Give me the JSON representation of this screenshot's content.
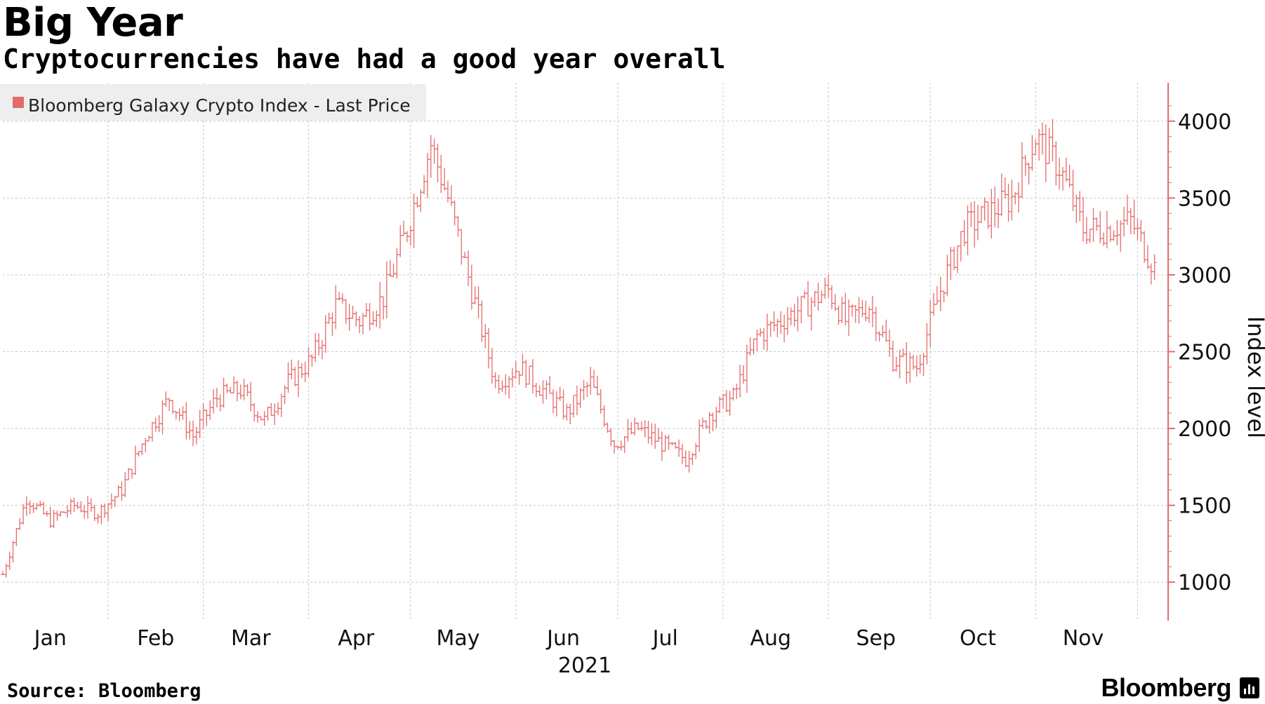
{
  "title": "Big Year",
  "subtitle": "Cryptocurrencies have had a good year overall",
  "source": "Source: Bloomberg",
  "brand": "Bloomberg",
  "brand_icon": "bar-chart-icon",
  "colors": {
    "series": "#e46b6b",
    "grid": "#c8c8c8",
    "legend_bg": "#eeeeee"
  },
  "chart_data": {
    "type": "ohlc",
    "title": "Big Year",
    "subtitle": "Cryptocurrencies have had a good year overall",
    "ylabel": "Index level",
    "ylim": [
      750,
      4250
    ],
    "yticks": [
      1000,
      1500,
      2000,
      2500,
      3000,
      3500,
      4000
    ],
    "ytick_labels": [
      "1000",
      "1500",
      "2000",
      "2500",
      "3000",
      "3500",
      "4000"
    ],
    "y_axis_side": "right",
    "months": [
      "Jan",
      "Feb",
      "Mar",
      "Apr",
      "May",
      "Jun",
      "Jul",
      "Aug",
      "Sep",
      "Oct",
      "Nov"
    ],
    "year_label": "2021",
    "legend": "Bloomberg Galaxy Crypto Index - Last Price",
    "legend_position": "top-left",
    "grid": true,
    "series": [
      {
        "name": "Bloomberg Galaxy Crypto Index - Last Price",
        "x": [
          "2021-01-01",
          "2021-01-08",
          "2021-01-15",
          "2021-01-22",
          "2021-01-29",
          "2021-02-05",
          "2021-02-12",
          "2021-02-19",
          "2021-02-26",
          "2021-03-05",
          "2021-03-12",
          "2021-03-19",
          "2021-03-26",
          "2021-04-02",
          "2021-04-09",
          "2021-04-16",
          "2021-04-23",
          "2021-04-30",
          "2021-05-07",
          "2021-05-12",
          "2021-05-19",
          "2021-05-26",
          "2021-06-02",
          "2021-06-09",
          "2021-06-16",
          "2021-06-23",
          "2021-06-30",
          "2021-07-07",
          "2021-07-14",
          "2021-07-21",
          "2021-07-28",
          "2021-08-04",
          "2021-08-11",
          "2021-08-18",
          "2021-08-25",
          "2021-09-01",
          "2021-09-06",
          "2021-09-13",
          "2021-09-20",
          "2021-09-27",
          "2021-10-04",
          "2021-10-11",
          "2021-10-18",
          "2021-10-25",
          "2021-11-01",
          "2021-11-08",
          "2021-11-15",
          "2021-11-22",
          "2021-11-29",
          "2021-12-06"
        ],
        "values": [
          1050,
          1550,
          1400,
          1500,
          1450,
          1600,
          1950,
          2200,
          1950,
          2200,
          2250,
          2050,
          2300,
          2450,
          2800,
          2700,
          2850,
          3300,
          3850,
          3500,
          2900,
          2300,
          2400,
          2250,
          2100,
          2300,
          1900,
          2000,
          1900,
          1800,
          2100,
          2200,
          2600,
          2700,
          2800,
          2900,
          2700,
          2800,
          2450,
          2400,
          2900,
          3300,
          3400,
          3500,
          3900,
          3700,
          3300,
          3300,
          3350,
          3050
        ]
      }
    ]
  }
}
